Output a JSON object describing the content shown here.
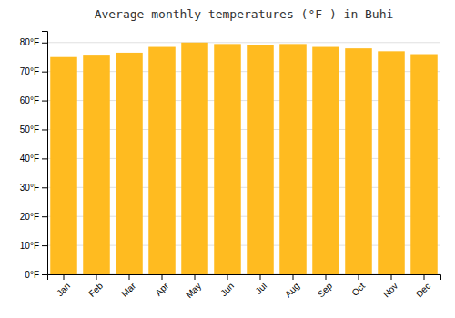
{
  "chart_data": {
    "type": "bar",
    "title": "Average monthly temperatures (°F ) in Buhi",
    "categories": [
      "Jan",
      "Feb",
      "Mar",
      "Apr",
      "May",
      "Jun",
      "Jul",
      "Aug",
      "Sep",
      "Oct",
      "Nov",
      "Dec"
    ],
    "values": [
      75,
      75.5,
      76.5,
      78.5,
      80,
      79.5,
      79,
      79.5,
      78.5,
      78,
      77,
      76
    ],
    "color": "#FFBB20",
    "ylim": [
      0,
      84
    ],
    "yticks": [
      {
        "value": 0,
        "label": "0°F"
      },
      {
        "value": 10,
        "label": "10°F"
      },
      {
        "value": 20,
        "label": "20°F"
      },
      {
        "value": 30,
        "label": "30°F"
      },
      {
        "value": 40,
        "label": "40°F"
      },
      {
        "value": 50,
        "label": "50°F"
      },
      {
        "value": 60,
        "label": "60°F"
      },
      {
        "value": 70,
        "label": "70°F"
      },
      {
        "value": 80,
        "label": "80°F"
      }
    ],
    "grid": true
  }
}
